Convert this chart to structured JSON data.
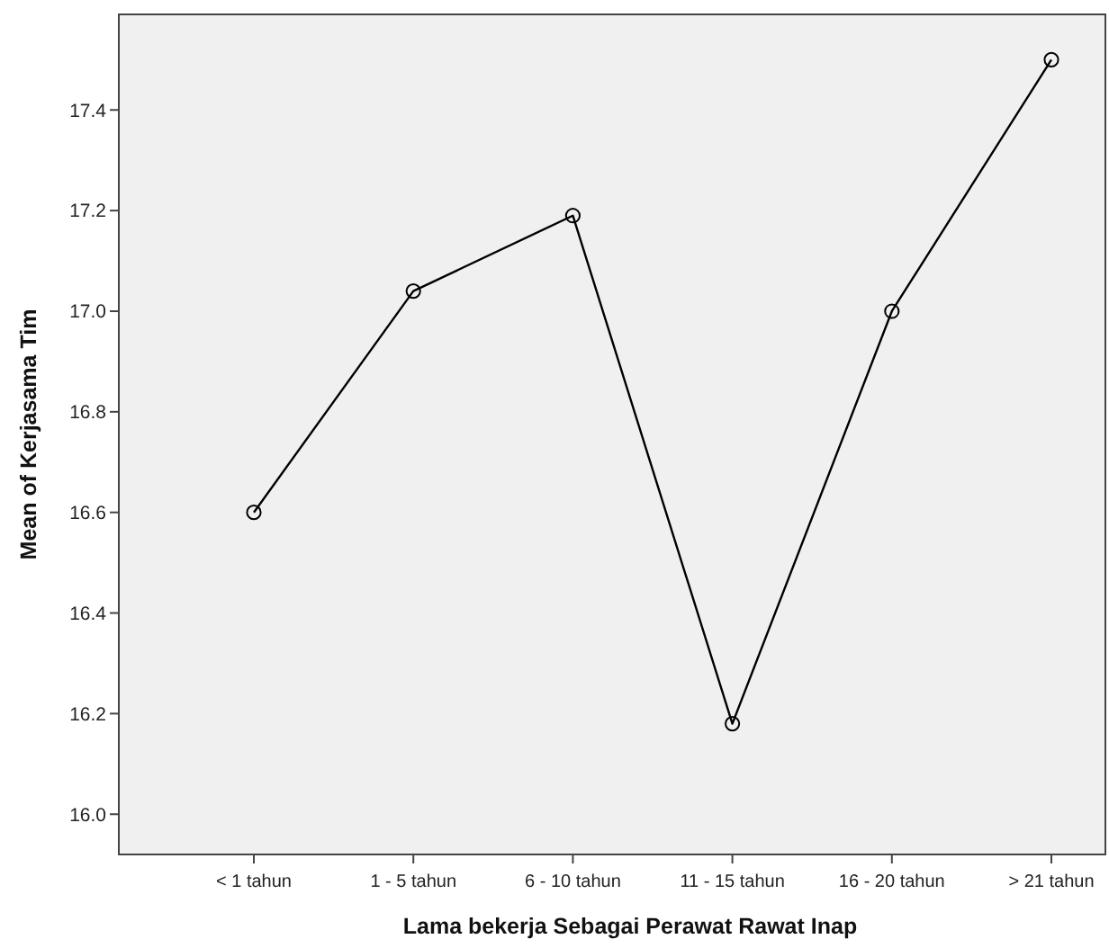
{
  "chart_data": {
    "type": "line",
    "xlabel": "Lama bekerja Sebagai Perawat Rawat Inap",
    "ylabel": "Mean of Kerjasama Tim",
    "categories": [
      "< 1 tahun",
      "1 - 5 tahun",
      "6 - 10 tahun",
      "11 - 15 tahun",
      "16 - 20 tahun",
      "> 21 tahun"
    ],
    "series": [
      {
        "color": "#000000",
        "values": [
          16.6,
          17.04,
          17.19,
          16.18,
          17.0,
          17.5
        ]
      }
    ],
    "ylim": [
      15.92,
      17.59
    ],
    "yticks": [
      {
        "value": 16,
        "label": "16.0"
      },
      {
        "value": 16.2,
        "label": "16.2"
      },
      {
        "value": 16.4,
        "label": "16.4"
      },
      {
        "value": 16.6,
        "label": "16.6"
      },
      {
        "value": 16.8,
        "label": "16.8"
      },
      {
        "value": 17,
        "label": "17.0"
      },
      {
        "value": 17.2,
        "label": "17.2"
      },
      {
        "value": 17.4,
        "label": "17.4"
      }
    ],
    "grid": false,
    "marker": "circle",
    "line_style": "solid"
  }
}
